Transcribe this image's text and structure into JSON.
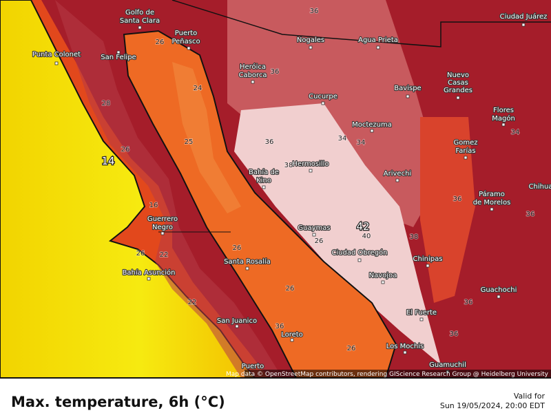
{
  "map": {
    "labels": [
      "Golfo de",
      "Santa Clara",
      "Puerto",
      "Peñasco",
      "Punta Colonet",
      "San Felipe",
      "Heróica",
      "Caborca",
      "Nogales",
      "Agua Prieta",
      "Ciudad Juárez",
      "Cucurpe",
      "Bavispe",
      "Nuevo",
      "Casas",
      "Grandes",
      "Moctezuma",
      "Flores",
      "Magón",
      "Gomez",
      "Farías",
      "Hermosillo",
      "Bahía de",
      "Kino",
      "Arivechi",
      "Chihua",
      "Páramo",
      "de Morelos",
      "Guerrero",
      "Negro",
      "Guaymas",
      "Ciudad Obregón",
      "Chinipas",
      "Santa Rosalía",
      "Bahía Asunción",
      "Navojoa",
      "Guachochi",
      "El Fuerte",
      "San Juanico",
      "Loreto",
      "Los Mochis",
      "Puerto",
      "Guamuchil"
    ],
    "contours": [
      "36",
      "36",
      "24",
      "26",
      "28",
      "26",
      "25",
      "16",
      "26",
      "22",
      "22",
      "36",
      "38",
      "34",
      "34",
      "40",
      "38",
      "34",
      "36",
      "36",
      "26",
      "26",
      "26",
      "36",
      "26",
      "36",
      "36"
    ],
    "highlights": [
      "14",
      "42"
    ],
    "attribution": "Map data © OpenStreetMap contributors, rendering GIScience Research Group @ Heidelberg University"
  },
  "footer": {
    "title": "Max. temperature, 6h (°C)",
    "valid_label": "Valid for",
    "valid_time": "Sun 19/05/2024, 20:00 EDT"
  }
}
